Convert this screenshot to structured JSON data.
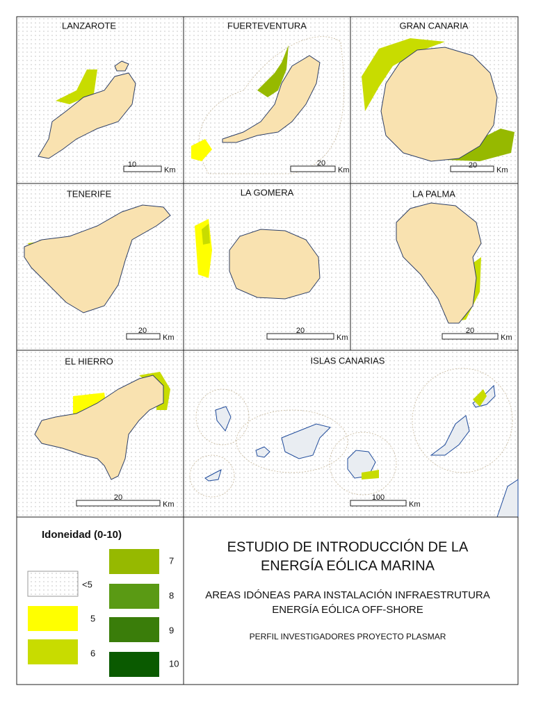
{
  "panels": [
    {
      "title": "LANZAROTE",
      "scale": "10",
      "unit": "Km"
    },
    {
      "title": "FUERTEVENTURA",
      "scale": "20",
      "unit": "Km"
    },
    {
      "title": "GRAN CANARIA",
      "scale": "20",
      "unit": "Km"
    },
    {
      "title": "TENERIFE",
      "scale": "20",
      "unit": "Km"
    },
    {
      "title": "LA GOMERA",
      "scale": "20",
      "unit": "Km"
    },
    {
      "title": "LA PALMA",
      "scale": "20",
      "unit": "Km"
    },
    {
      "title": "EL HIERRO",
      "scale": "20",
      "unit": "Km"
    },
    {
      "title": "ISLAS CANARIAS",
      "scale": "100",
      "unit": "Km"
    }
  ],
  "legend": {
    "title": "Idoneidad (0-10)",
    "items": [
      {
        "label": "<5",
        "style": "dotted"
      },
      {
        "label": "5",
        "color": "#ffff00"
      },
      {
        "label": "6",
        "color": "#c8dc00"
      },
      {
        "label": "7",
        "color": "#96b900"
      },
      {
        "label": "8",
        "color": "#5a9a14"
      },
      {
        "label": "9",
        "color": "#3a7d0a"
      },
      {
        "label": "10",
        "color": "#0a5a00"
      }
    ]
  },
  "title": {
    "line1": "ESTUDIO DE INTRODUCCIÓN DE LA",
    "line2": "ENERGÍA EÓLICA MARINA"
  },
  "subtitle": {
    "line1": "AREAS IDÓNEAS PARA INSTALACIÓN INFRAESTRUTURA",
    "line2": "ENERGÍA EÓLICA OFF-SHORE"
  },
  "credit": "PERFIL INVESTIGADORES PROYECTO PLASMAR"
}
